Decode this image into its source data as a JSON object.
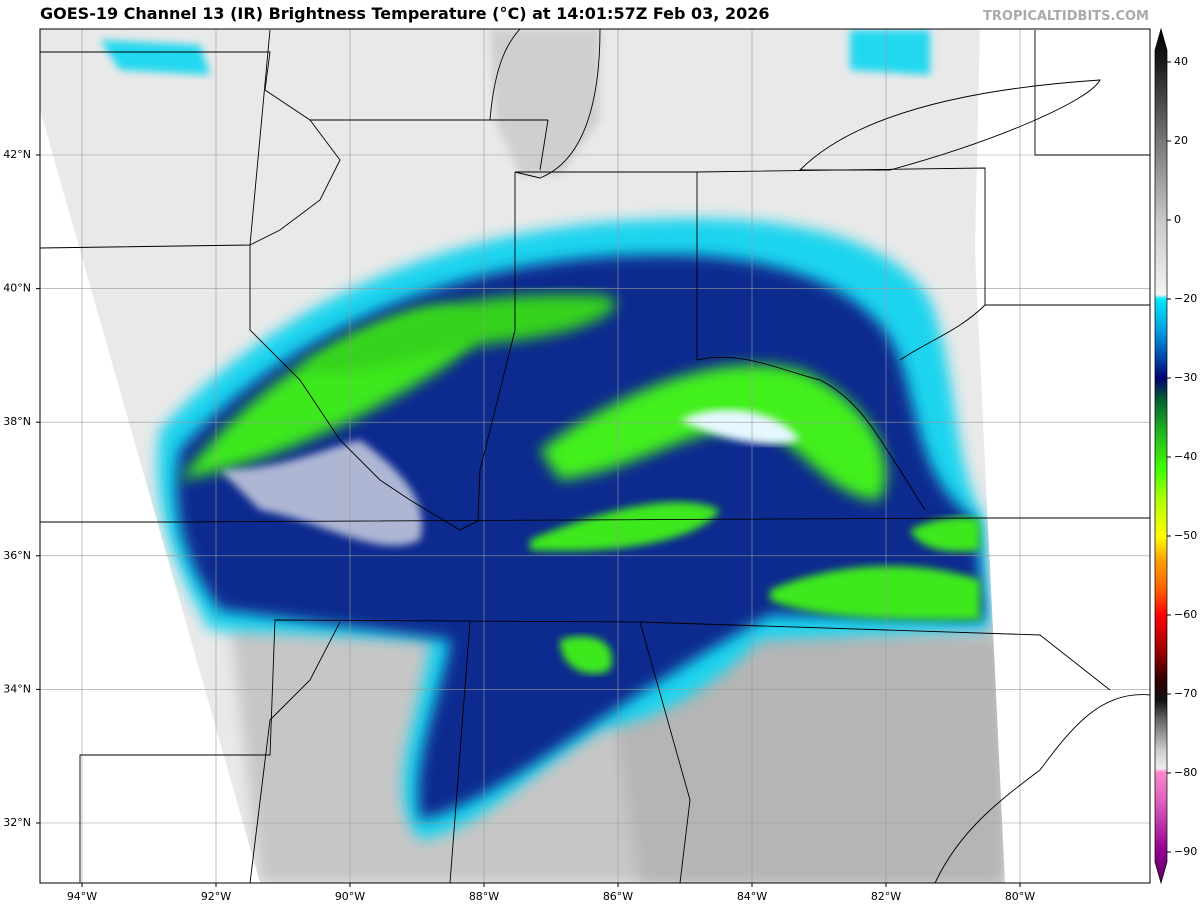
{
  "header": {
    "title": "GOES-19 Channel 13 (IR) Brightness Temperature (°C) at 14:01:57Z Feb 03, 2026",
    "credit": "TROPICALTIDBITS.COM"
  },
  "map": {
    "latitude_labels": [
      "42°N",
      "40°N",
      "38°N",
      "36°N",
      "34°N",
      "32°N"
    ],
    "longitude_labels": [
      "94°W",
      "92°W",
      "90°W",
      "88°W",
      "86°W",
      "84°W",
      "82°W",
      "80°W"
    ]
  },
  "colorbar": {
    "tick_labels": [
      "40",
      "20",
      "0",
      "−20",
      "−30",
      "−40",
      "−50",
      "−60",
      "−70",
      "−80",
      "−90"
    ]
  }
}
